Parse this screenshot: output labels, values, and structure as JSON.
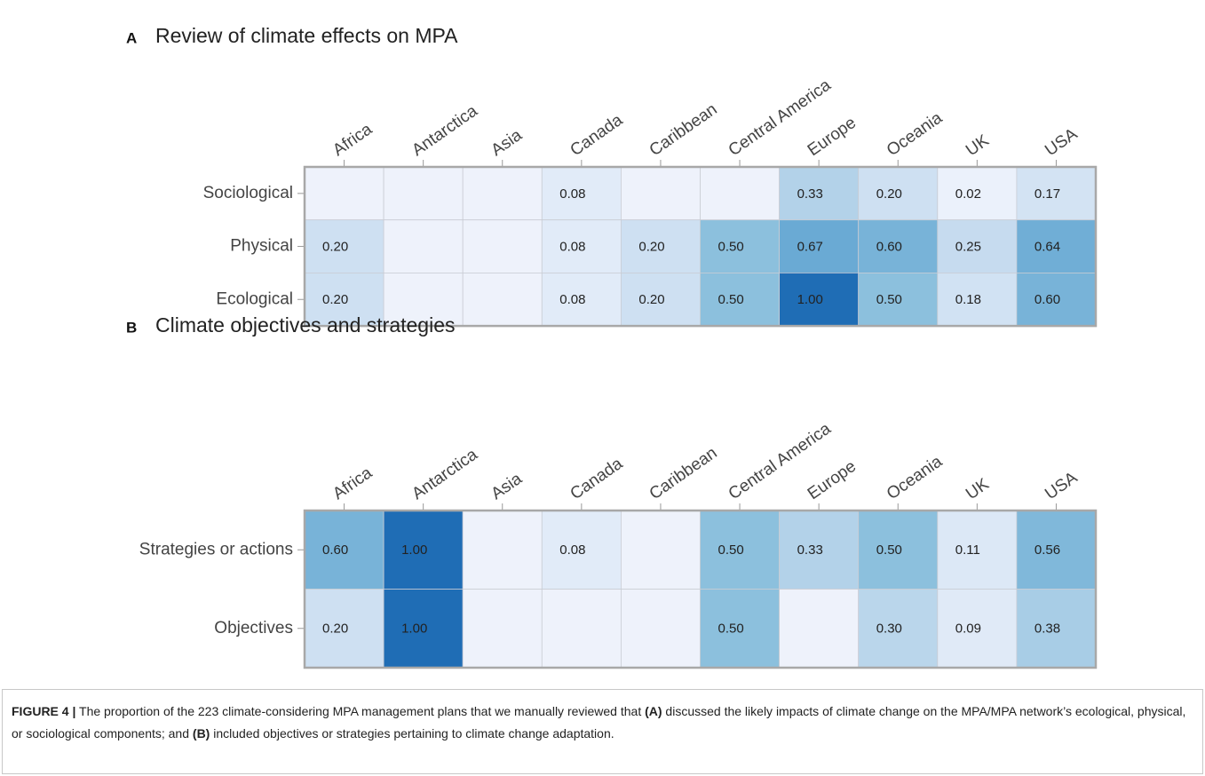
{
  "chart_data": [
    {
      "type": "heatmap",
      "panel": "A",
      "title": "Review of climate effects on MPA",
      "categories": [
        "Africa",
        "Antarctica",
        "Asia",
        "Canada",
        "Caribbean",
        "Central America",
        "Europe",
        "Oceania",
        "UK",
        "USA"
      ],
      "rows": [
        "Sociological",
        "Physical",
        "Ecological"
      ],
      "values": [
        [
          null,
          null,
          null,
          0.08,
          null,
          null,
          0.33,
          0.2,
          0.02,
          0.17
        ],
        [
          0.2,
          null,
          null,
          0.08,
          0.2,
          0.5,
          0.67,
          0.6,
          0.25,
          0.64
        ],
        [
          0.2,
          null,
          null,
          0.08,
          0.2,
          0.5,
          1,
          0.5,
          0.18,
          0.6
        ]
      ],
      "value_labels": [
        [
          null,
          null,
          null,
          "0.08",
          null,
          null,
          "0.33",
          "0.20",
          "0.02",
          "0.17"
        ],
        [
          "0.20",
          null,
          null,
          "0.08",
          "0.20",
          "0.50",
          "0.67",
          "0.60",
          "0.25",
          "0.64"
        ],
        [
          "0.20",
          null,
          null,
          "0.08",
          "0.20",
          "0.50",
          "1.00",
          "0.50",
          "0.18",
          "0.60"
        ]
      ],
      "zlim": [
        0,
        1
      ],
      "colorscale": [
        "#eef3fc",
        "#c6dbef",
        "#8cc0dd",
        "#5aa0d0",
        "#1f6db5"
      ],
      "null_color": "#eef2fb"
    },
    {
      "type": "heatmap",
      "panel": "B",
      "title": "Climate objectives and strategies",
      "categories": [
        "Africa",
        "Antarctica",
        "Asia",
        "Canada",
        "Caribbean",
        "Central America",
        "Europe",
        "Oceania",
        "UK",
        "USA"
      ],
      "rows": [
        "Strategies or actions",
        "Objectives"
      ],
      "values": [
        [
          0.6,
          1,
          null,
          0.08,
          null,
          0.5,
          0.33,
          0.5,
          0.11,
          0.56
        ],
        [
          0.2,
          1,
          null,
          null,
          null,
          0.5,
          null,
          0.3,
          0.09,
          0.38
        ]
      ],
      "value_labels": [
        [
          "0.60",
          "1.00",
          null,
          "0.08",
          null,
          "0.50",
          "0.33",
          "0.50",
          "0.11",
          "0.56"
        ],
        [
          "0.20",
          "1.00",
          null,
          null,
          null,
          "0.50",
          null,
          "0.30",
          "0.09",
          "0.38"
        ]
      ],
      "zlim": [
        0,
        1
      ],
      "colorscale": [
        "#eef3fc",
        "#c6dbef",
        "#8cc0dd",
        "#5aa0d0",
        "#1f6db5"
      ],
      "null_color": "#eef2fb"
    }
  ],
  "caption": [
    {
      "text": "FIGURE 4 |",
      "bold": true
    },
    {
      "text": " The proportion of the 223 climate-considering MPA management plans that we manually reviewed that ",
      "bold": false
    },
    {
      "text": "(A)",
      "bold": true
    },
    {
      "text": " discussed the likely impacts of climate change on the MPA/MPA network’s ecological, physical, or sociological components; and ",
      "bold": false
    },
    {
      "text": "(B)",
      "bold": true
    },
    {
      "text": " included objectives or strategies pertaining to climate change adaptation.",
      "bold": false
    }
  ]
}
